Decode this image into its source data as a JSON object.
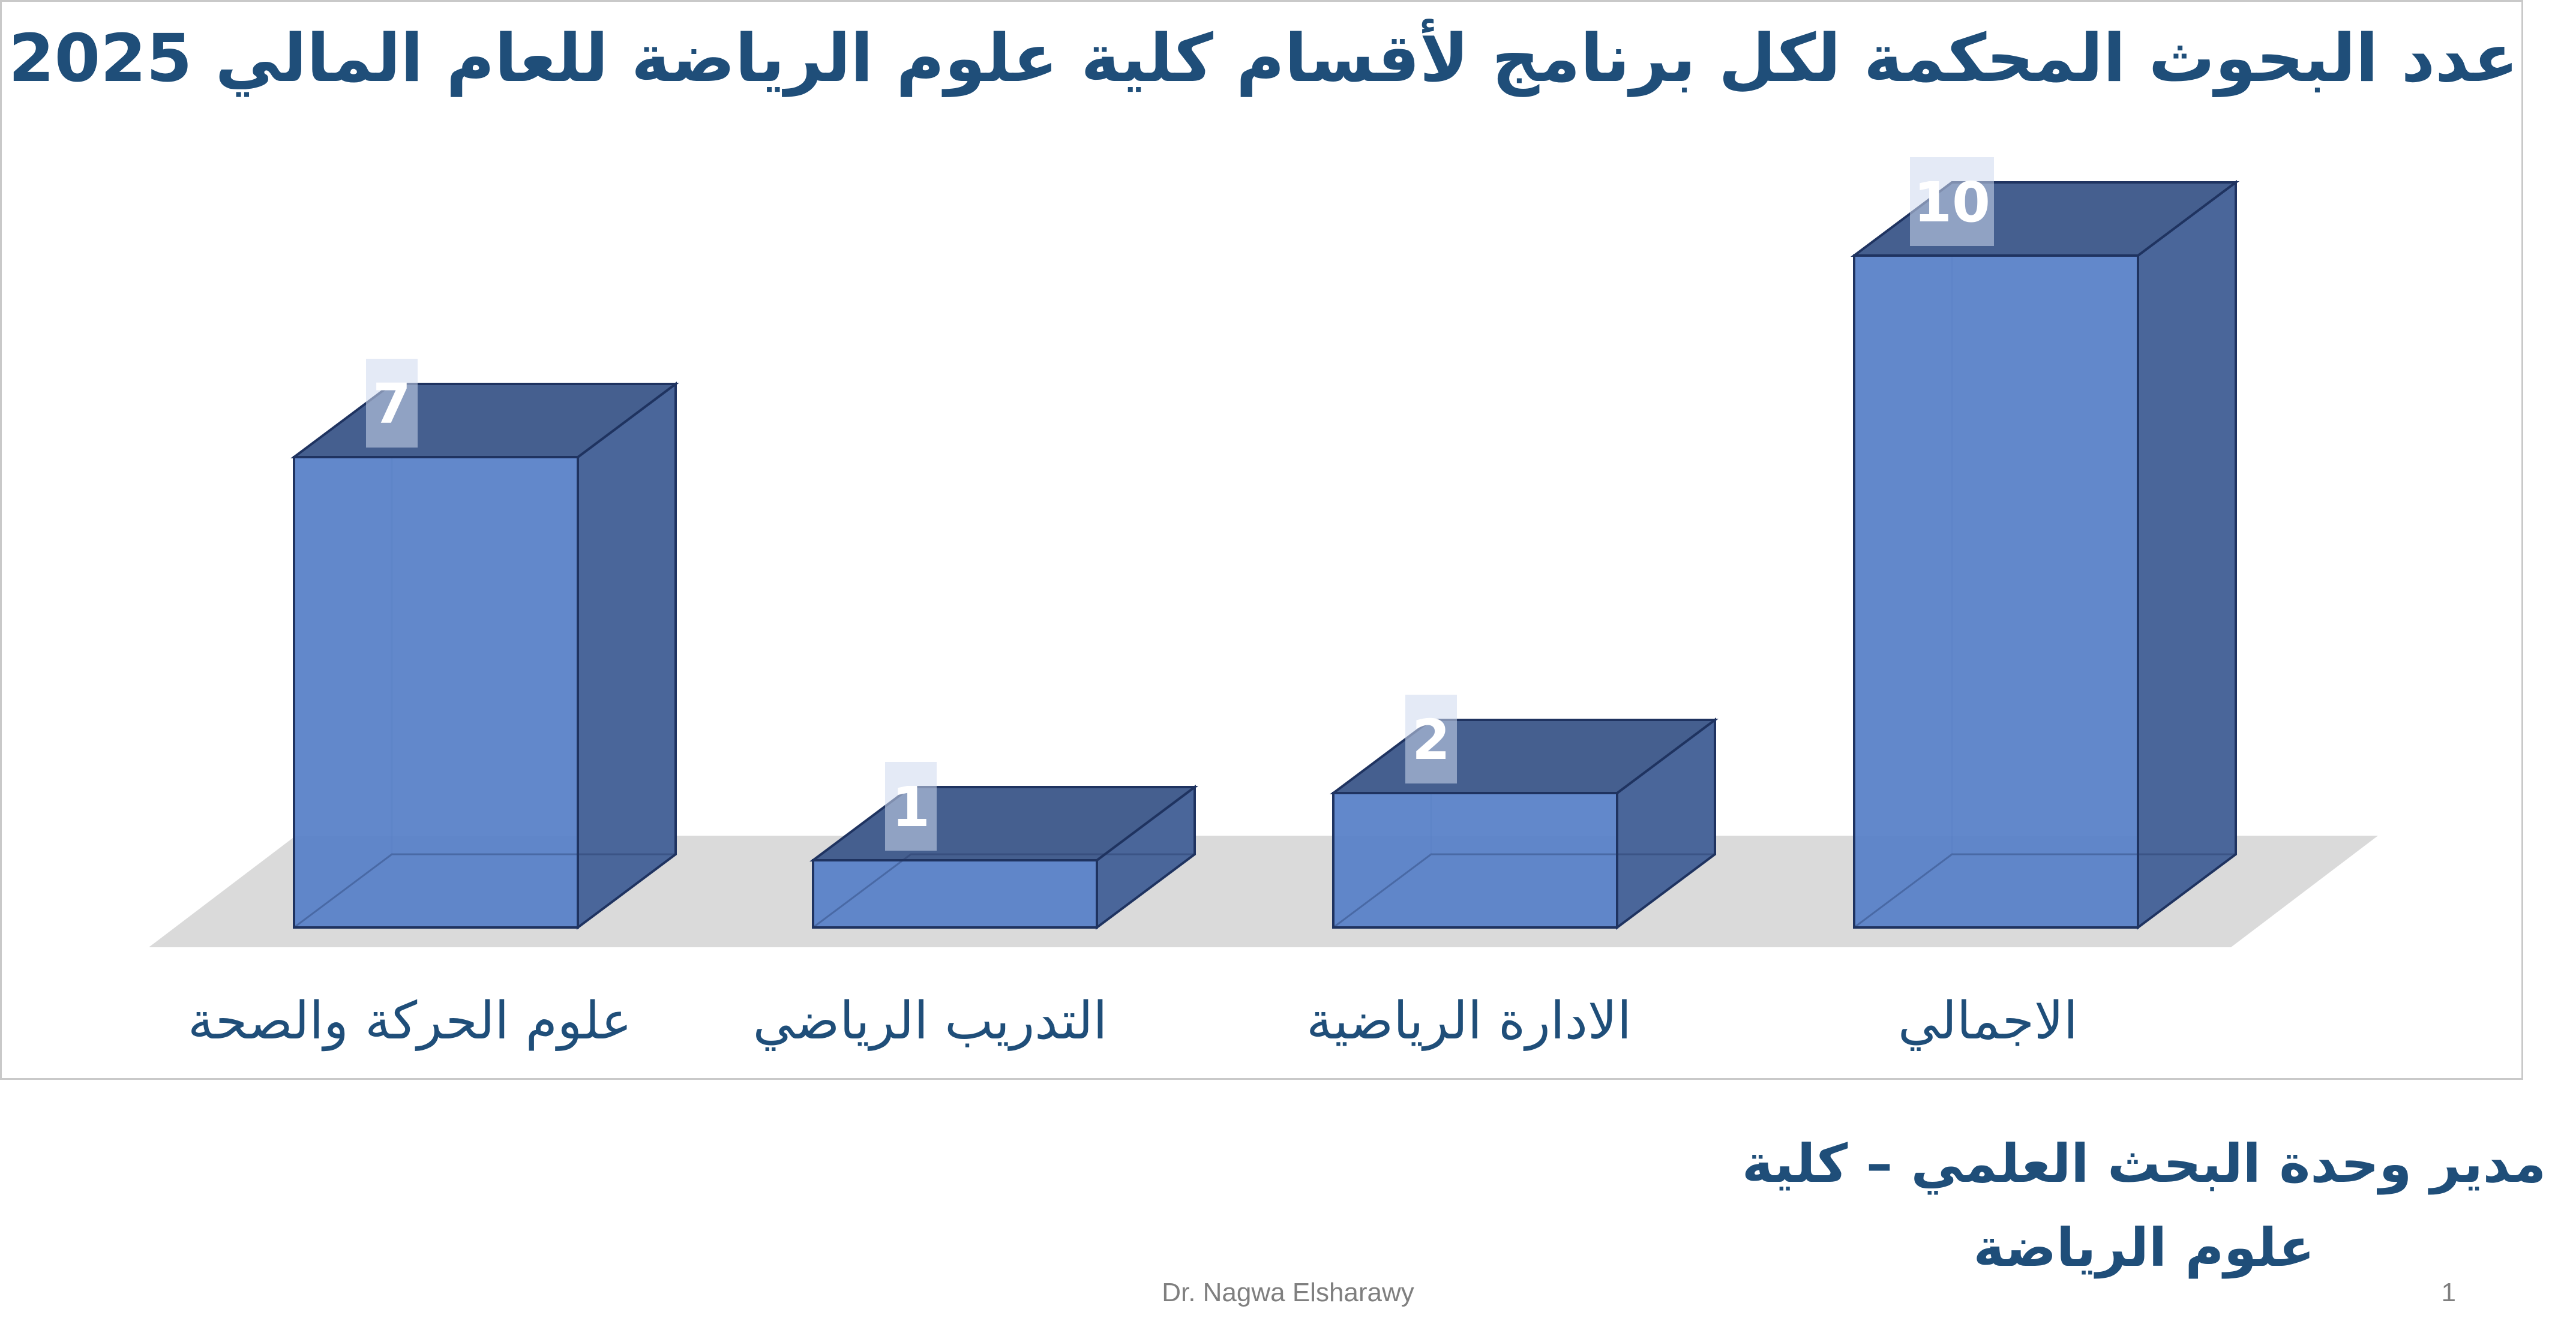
{
  "chart_data": {
    "type": "bar",
    "title": "عدد البحوث المحكمة لكل برنامج لأقسام كلية علوم الرياضة للعام المالي 2025",
    "categories": [
      "علوم الحركة والصحة",
      "التدريب الرياضي",
      "الادارة الرياضية",
      "الاجمالي"
    ],
    "values": [
      7,
      1,
      2,
      10
    ],
    "data_labels": [
      "7",
      "1",
      "2",
      "10"
    ],
    "xlabel": "",
    "ylabel": "",
    "ylim": [
      0,
      10
    ],
    "grid": false,
    "legend": "none",
    "style": "3d-column"
  },
  "colors": {
    "bar_front": "#5a82c8",
    "bar_side": "#4a669a",
    "bar_top": "#455f8f",
    "bar_edge": "#1f3360",
    "floor": "#dadada",
    "title": "#1f4e79",
    "label_bg": "#cdd9ee"
  },
  "footer": {
    "department": "مدير وحدة البحث العلمي – كلية علوم الرياضة",
    "author": "Dr. Nagwa Elsharawy",
    "slide_number": "1"
  }
}
